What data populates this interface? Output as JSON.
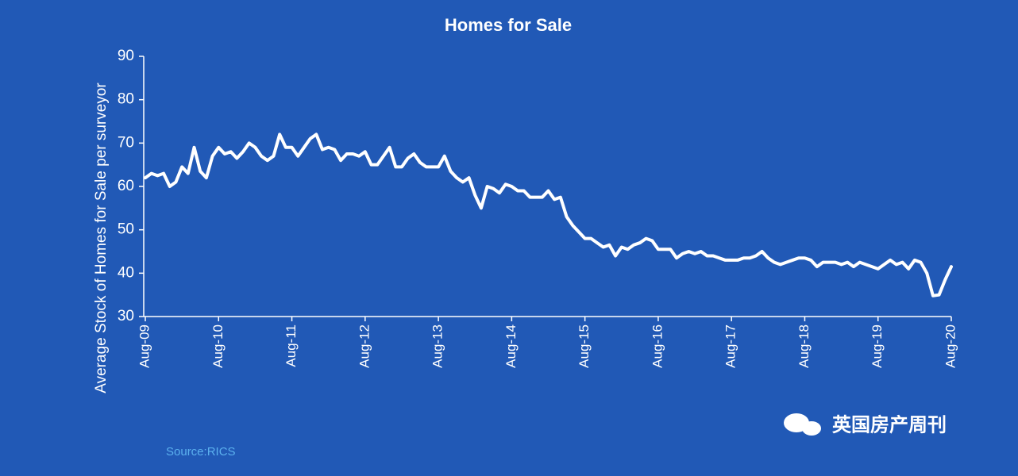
{
  "chart_data": {
    "type": "line",
    "title": "Homes for Sale",
    "y_label": "Average Stock of Homes for Sale per surveyor",
    "source": "Source:RICS",
    "watermark": "英国房产周刊",
    "categories": [
      "Aug-09",
      null,
      null,
      null,
      null,
      null,
      null,
      null,
      null,
      null,
      null,
      null,
      "Aug-10",
      null,
      null,
      null,
      null,
      null,
      null,
      null,
      null,
      null,
      null,
      null,
      "Aug-11",
      null,
      null,
      null,
      null,
      null,
      null,
      null,
      null,
      null,
      null,
      null,
      "Aug-12",
      null,
      null,
      null,
      null,
      null,
      null,
      null,
      null,
      null,
      null,
      null,
      "Aug-13",
      null,
      null,
      null,
      null,
      null,
      null,
      null,
      null,
      null,
      null,
      null,
      "Aug-14",
      null,
      null,
      null,
      null,
      null,
      null,
      null,
      null,
      null,
      null,
      null,
      "Aug-15",
      null,
      null,
      null,
      null,
      null,
      null,
      null,
      null,
      null,
      null,
      null,
      "Aug-16",
      null,
      null,
      null,
      null,
      null,
      null,
      null,
      null,
      null,
      null,
      null,
      "Aug-17",
      null,
      null,
      null,
      null,
      null,
      null,
      null,
      null,
      null,
      null,
      null,
      "Aug-18",
      null,
      null,
      null,
      null,
      null,
      null,
      null,
      null,
      null,
      null,
      null,
      "Aug-19",
      null,
      null,
      null,
      null,
      null,
      null,
      null,
      null,
      null,
      null,
      null,
      "Aug-20"
    ],
    "values": [
      62,
      63,
      62.5,
      63,
      60,
      61,
      64.5,
      63,
      69,
      63.5,
      62,
      67,
      69,
      67.5,
      68,
      66.5,
      68,
      70,
      69,
      67,
      66,
      67,
      72,
      69,
      69,
      67,
      69,
      71,
      72,
      68.5,
      69,
      68.5,
      66,
      67.5,
      67.5,
      67,
      68,
      65,
      65,
      67,
      69,
      64.5,
      64.5,
      66.5,
      67.5,
      65.5,
      64.5,
      64.5,
      64.5,
      67,
      63.5,
      62,
      61,
      62,
      58,
      55,
      60,
      59.5,
      58.5,
      60.5,
      60,
      59,
      59,
      57.5,
      57.5,
      57.5,
      59,
      57,
      57.5,
      53,
      51,
      49.5,
      48,
      48,
      47,
      46,
      46.5,
      44,
      46,
      45.5,
      46.5,
      47,
      48,
      47.5,
      45.5,
      45.5,
      45.5,
      43.5,
      44.5,
      45,
      44.5,
      45,
      44,
      44,
      43.5,
      43,
      43,
      43,
      43.5,
      43.5,
      44,
      45,
      43.5,
      42.5,
      42,
      42.5,
      43,
      43.5,
      43.5,
      43,
      41.5,
      42.5,
      42.5,
      42.5,
      42,
      42.5,
      41.5,
      42.5,
      42,
      41.5,
      41,
      42,
      43,
      42,
      42.5,
      41,
      43,
      42.5,
      40,
      34.8,
      35,
      38.5,
      41.5
    ],
    "color": "#ffffff",
    "ylim": [
      30,
      90
    ],
    "yticks": [
      30,
      40,
      50,
      60,
      70,
      80,
      90
    ]
  }
}
